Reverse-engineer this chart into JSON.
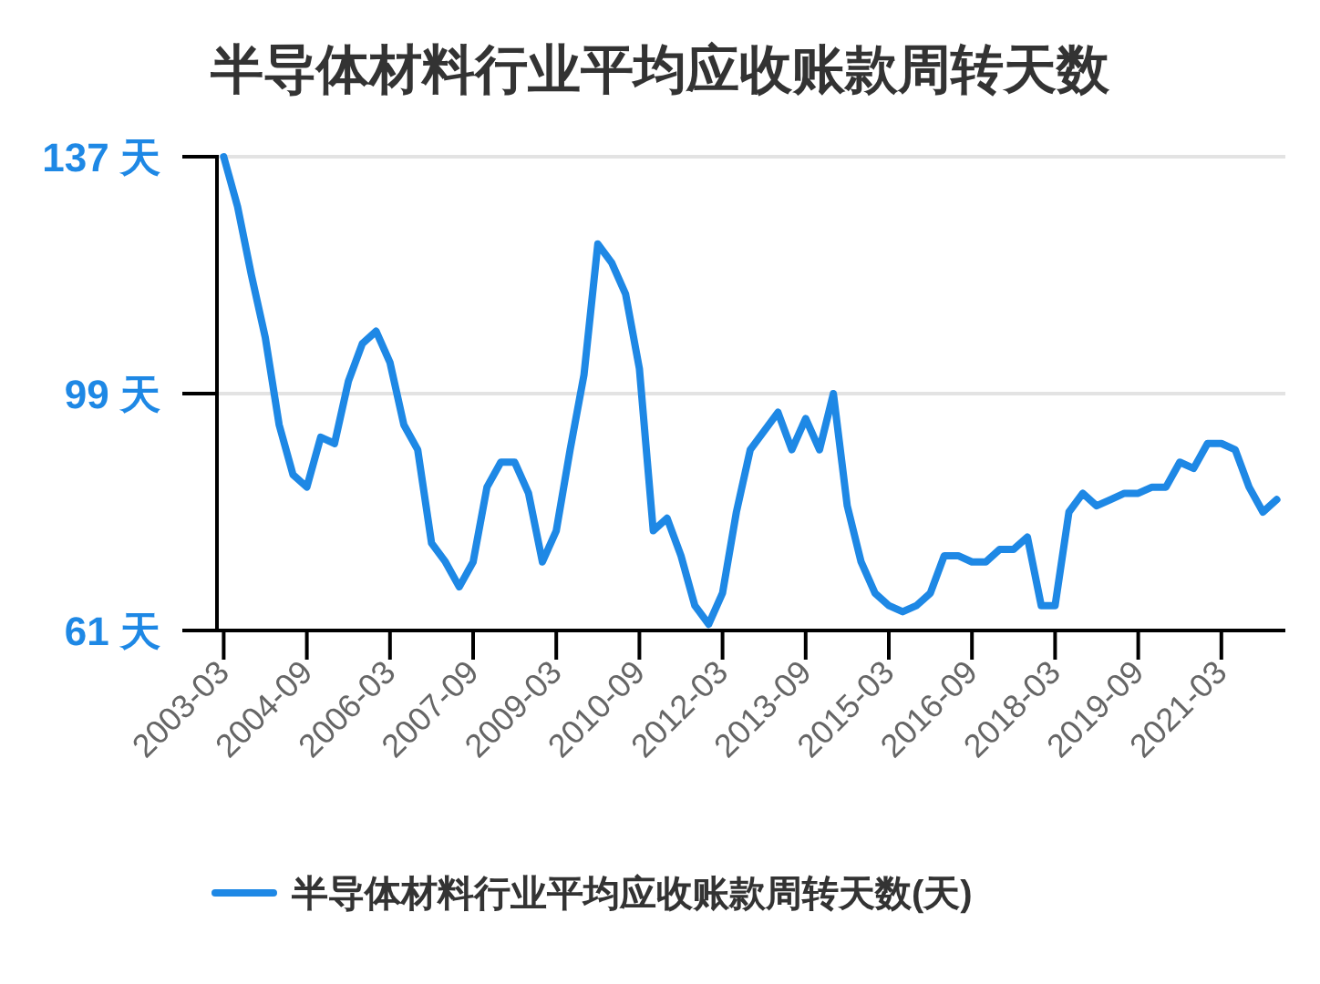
{
  "chart_data": {
    "type": "line",
    "title": "半导体材料行业平均应收账款周转天数",
    "categories": [
      "2003-03",
      null,
      null,
      null,
      null,
      null,
      "2004-09",
      null,
      null,
      null,
      null,
      null,
      "2006-03",
      null,
      null,
      null,
      null,
      null,
      "2007-09",
      null,
      null,
      null,
      null,
      null,
      "2009-03",
      null,
      null,
      null,
      null,
      null,
      "2010-09",
      null,
      null,
      null,
      null,
      null,
      "2012-03",
      null,
      null,
      null,
      null,
      null,
      "2013-09",
      null,
      null,
      null,
      null,
      null,
      "2015-03",
      null,
      null,
      null,
      null,
      null,
      "2016-09",
      null,
      null,
      null,
      null,
      null,
      "2018-03",
      null,
      null,
      null,
      null,
      null,
      "2019-09",
      null,
      null,
      null,
      null,
      null,
      "2021-03",
      null,
      null,
      null,
      null
    ],
    "series": [
      {
        "name": "半导体材料行业平均应收账款周转天数(天)",
        "color": "#1e88e5",
        "values": [
          137,
          129,
          118,
          108,
          94,
          86,
          84,
          92,
          91,
          101,
          107,
          109,
          104,
          94,
          90,
          75,
          72,
          68,
          72,
          84,
          88,
          88,
          83,
          72,
          77,
          90,
          102,
          123,
          120,
          115,
          103,
          77,
          79,
          73,
          65,
          62,
          67,
          80,
          90,
          93,
          96,
          90,
          95,
          90,
          99,
          81,
          72,
          67,
          65,
          64,
          65,
          67,
          73,
          73,
          72,
          72,
          74,
          74,
          76,
          65,
          65,
          80,
          83,
          81,
          82,
          83,
          83,
          84,
          84,
          88,
          87,
          91,
          91,
          90,
          84,
          80,
          82
        ]
      }
    ],
    "ylim": [
      61,
      137
    ],
    "yticks": [
      {
        "value": 61,
        "label": "61 天"
      },
      {
        "value": 99,
        "label": "99 天"
      },
      {
        "value": 137,
        "label": "137 天"
      }
    ],
    "grid": "y",
    "legend": "bottom"
  }
}
